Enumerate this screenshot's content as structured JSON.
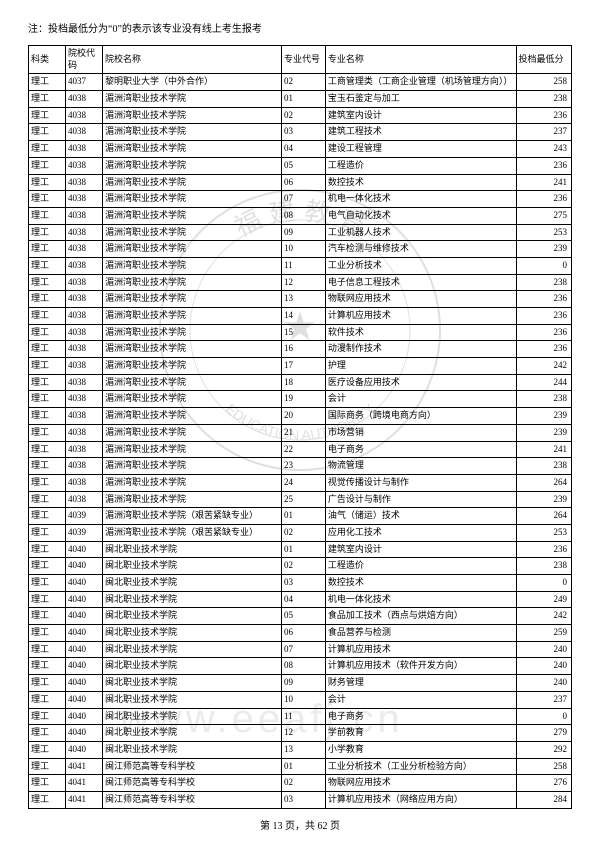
{
  "note": "注：投档最低分为“0”的表示该专业没有线上考生报考",
  "footer": "第 13 页，共 62 页",
  "headers": [
    "科类",
    "院校代码",
    "院校名称",
    "专业代号",
    "专业名称",
    "投档最低分"
  ],
  "rows": [
    [
      "理工",
      "4037",
      "黎明职业大学（中外合作）",
      "02",
      "工商管理类（工商企业管理（机场管理方向））",
      "258"
    ],
    [
      "理工",
      "4038",
      "湄洲湾职业技术学院",
      "01",
      "宝玉石鉴定与加工",
      "238"
    ],
    [
      "理工",
      "4038",
      "湄洲湾职业技术学院",
      "02",
      "建筑室内设计",
      "236"
    ],
    [
      "理工",
      "4038",
      "湄洲湾职业技术学院",
      "03",
      "建筑工程技术",
      "237"
    ],
    [
      "理工",
      "4038",
      "湄洲湾职业技术学院",
      "04",
      "建设工程管理",
      "243"
    ],
    [
      "理工",
      "4038",
      "湄洲湾职业技术学院",
      "05",
      "工程造价",
      "236"
    ],
    [
      "理工",
      "4038",
      "湄洲湾职业技术学院",
      "06",
      "数控技术",
      "241"
    ],
    [
      "理工",
      "4038",
      "湄洲湾职业技术学院",
      "07",
      "机电一体化技术",
      "236"
    ],
    [
      "理工",
      "4038",
      "湄洲湾职业技术学院",
      "08",
      "电气自动化技术",
      "275"
    ],
    [
      "理工",
      "4038",
      "湄洲湾职业技术学院",
      "09",
      "工业机器人技术",
      "253"
    ],
    [
      "理工",
      "4038",
      "湄洲湾职业技术学院",
      "10",
      "汽车检测与维修技术",
      "239"
    ],
    [
      "理工",
      "4038",
      "湄洲湾职业技术学院",
      "11",
      "工业分析技术",
      "0"
    ],
    [
      "理工",
      "4038",
      "湄洲湾职业技术学院",
      "12",
      "电子信息工程技术",
      "238"
    ],
    [
      "理工",
      "4038",
      "湄洲湾职业技术学院",
      "13",
      "物联网应用技术",
      "236"
    ],
    [
      "理工",
      "4038",
      "湄洲湾职业技术学院",
      "14",
      "计算机应用技术",
      "236"
    ],
    [
      "理工",
      "4038",
      "湄洲湾职业技术学院",
      "15",
      "软件技术",
      "236"
    ],
    [
      "理工",
      "4038",
      "湄洲湾职业技术学院",
      "16",
      "动漫制作技术",
      "236"
    ],
    [
      "理工",
      "4038",
      "湄洲湾职业技术学院",
      "17",
      "护理",
      "242"
    ],
    [
      "理工",
      "4038",
      "湄洲湾职业技术学院",
      "18",
      "医疗设备应用技术",
      "244"
    ],
    [
      "理工",
      "4038",
      "湄洲湾职业技术学院",
      "19",
      "会计",
      "238"
    ],
    [
      "理工",
      "4038",
      "湄洲湾职业技术学院",
      "20",
      "国际商务（跨境电商方向）",
      "239"
    ],
    [
      "理工",
      "4038",
      "湄洲湾职业技术学院",
      "21",
      "市场营销",
      "239"
    ],
    [
      "理工",
      "4038",
      "湄洲湾职业技术学院",
      "22",
      "电子商务",
      "241"
    ],
    [
      "理工",
      "4038",
      "湄洲湾职业技术学院",
      "23",
      "物流管理",
      "238"
    ],
    [
      "理工",
      "4038",
      "湄洲湾职业技术学院",
      "24",
      "视觉传播设计与制作",
      "264"
    ],
    [
      "理工",
      "4038",
      "湄洲湾职业技术学院",
      "25",
      "广告设计与制作",
      "239"
    ],
    [
      "理工",
      "4039",
      "湄洲湾职业技术学院（艰苦紧缺专业）",
      "01",
      "油气（储运）技术",
      "264"
    ],
    [
      "理工",
      "4039",
      "湄洲湾职业技术学院（艰苦紧缺专业）",
      "02",
      "应用化工技术",
      "253"
    ],
    [
      "理工",
      "4040",
      "闽北职业技术学院",
      "01",
      "建筑室内设计",
      "236"
    ],
    [
      "理工",
      "4040",
      "闽北职业技术学院",
      "02",
      "工程造价",
      "238"
    ],
    [
      "理工",
      "4040",
      "闽北职业技术学院",
      "03",
      "数控技术",
      "0"
    ],
    [
      "理工",
      "4040",
      "闽北职业技术学院",
      "04",
      "机电一体化技术",
      "249"
    ],
    [
      "理工",
      "4040",
      "闽北职业技术学院",
      "05",
      "食品加工技术（西点与烘焙方向）",
      "242"
    ],
    [
      "理工",
      "4040",
      "闽北职业技术学院",
      "06",
      "食品营养与检测",
      "259"
    ],
    [
      "理工",
      "4040",
      "闽北职业技术学院",
      "07",
      "计算机应用技术",
      "240"
    ],
    [
      "理工",
      "4040",
      "闽北职业技术学院",
      "08",
      "计算机应用技术（软件开发方向）",
      "240"
    ],
    [
      "理工",
      "4040",
      "闽北职业技术学院",
      "09",
      "财务管理",
      "240"
    ],
    [
      "理工",
      "4040",
      "闽北职业技术学院",
      "10",
      "会计",
      "237"
    ],
    [
      "理工",
      "4040",
      "闽北职业技术学院",
      "11",
      "电子商务",
      "0"
    ],
    [
      "理工",
      "4040",
      "闽北职业技术学院",
      "12",
      "学前教育",
      "279"
    ],
    [
      "理工",
      "4040",
      "闽北职业技术学院",
      "13",
      "小学教育",
      "292"
    ],
    [
      "理工",
      "4041",
      "闽江师范高等专科学校",
      "01",
      "工业分析技术（工业分析检验方向）",
      "258"
    ],
    [
      "理工",
      "4041",
      "闽江师范高等专科学校",
      "02",
      "物联网应用技术",
      "276"
    ],
    [
      "理工",
      "4041",
      "闽江师范高等专科学校",
      "03",
      "计算机应用技术（网络应用方向）",
      "284"
    ]
  ]
}
